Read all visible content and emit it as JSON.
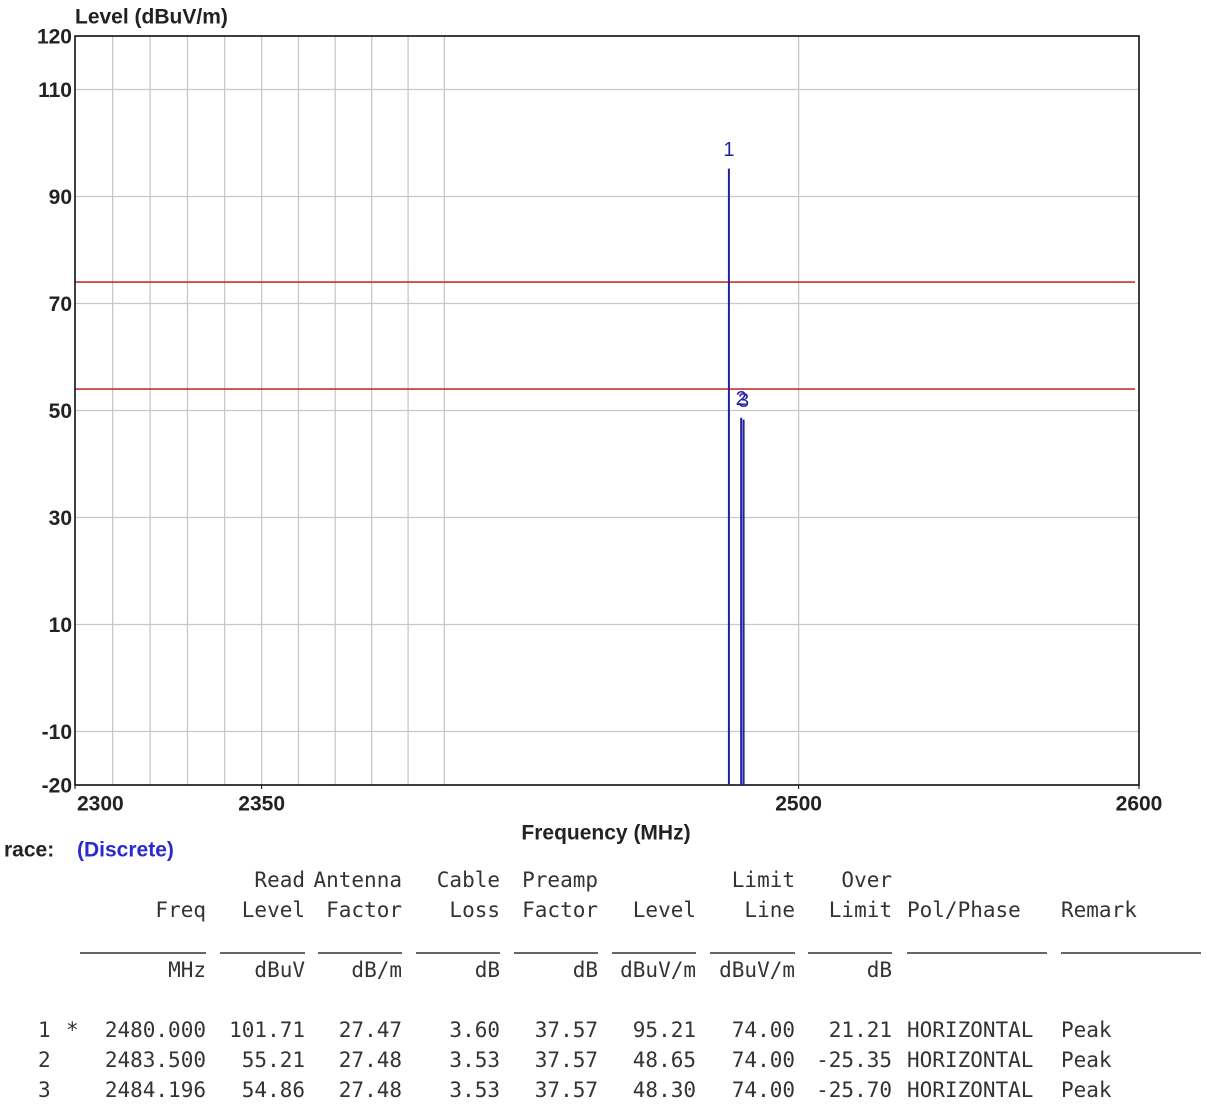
{
  "chart_data": {
    "type": "stem",
    "ylabel": "Level (dBuV/m)",
    "xlabel": "Frequency (MHz)",
    "x": [
      2480.0,
      2483.5,
      2484.196
    ],
    "values": [
      95.21,
      48.65,
      48.3
    ],
    "point_labels": [
      "1",
      "2",
      "3"
    ],
    "color": "#2222a0",
    "xlim": [
      2300,
      2600
    ],
    "xticks": [
      2300,
      2350,
      2500,
      2600
    ],
    "xscale": "log",
    "xgrid": [
      2310,
      2320,
      2330,
      2340,
      2350,
      2360,
      2370,
      2380,
      2390,
      2400,
      2500
    ],
    "ylim": [
      -20,
      120
    ],
    "yticks": [
      -20,
      -10,
      10,
      30,
      50,
      70,
      90,
      110,
      120
    ],
    "grid": true,
    "limit_lines": [
      {
        "value": 74,
        "color": "#c83030"
      },
      {
        "value": 54,
        "color": "#c83030"
      }
    ]
  },
  "trace": {
    "label": "race:",
    "value": "(Discrete)"
  },
  "table": {
    "columns": [
      {
        "bottom": "Freq",
        "unit": "MHz"
      },
      {
        "top": "Read",
        "bottom": "Level",
        "unit": "dBuV"
      },
      {
        "top": "Antenna",
        "bottom": "Factor",
        "unit": "dB/m"
      },
      {
        "top": "Cable",
        "bottom": "Loss",
        "unit": "dB"
      },
      {
        "top": "Preamp",
        "bottom": "Factor",
        "unit": "dB"
      },
      {
        "bottom": "Level",
        "unit": "dBuV/m"
      },
      {
        "top": "Limit",
        "bottom": "Line",
        "unit": "dBuV/m"
      },
      {
        "top": "Over",
        "bottom": "Limit",
        "unit": "dB"
      },
      {
        "bottom": "Pol/Phase"
      },
      {
        "bottom": "Remark"
      }
    ],
    "rows": [
      {
        "no": "1",
        "mark": "*",
        "cells": [
          "2480.000",
          "101.71",
          "27.47",
          "3.60",
          "37.57",
          "95.21",
          "74.00",
          "21.21",
          "HORIZONTAL",
          "Peak"
        ]
      },
      {
        "no": "2",
        "cells": [
          "2483.500",
          "55.21",
          "27.48",
          "3.53",
          "37.57",
          "48.65",
          "74.00",
          "-25.35",
          "HORIZONTAL",
          "Peak"
        ]
      },
      {
        "no": "3",
        "cells": [
          "2484.196",
          "54.86",
          "27.48",
          "3.53",
          "37.57",
          "48.30",
          "74.00",
          "-25.70",
          "HORIZONTAL",
          "Peak"
        ]
      }
    ]
  }
}
